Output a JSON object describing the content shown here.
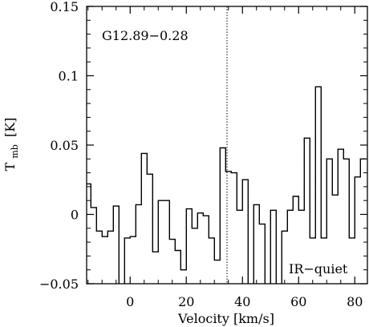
{
  "chart_data": {
    "type": "line",
    "style": "step",
    "ylabel": "T",
    "ylabel_sub": "mb",
    "ylabel_unit": "[K]",
    "xlabel": "Velocity [km/s]",
    "annotations": {
      "source": "G12.89−0.28",
      "category": "IR−quiet"
    },
    "xlim": [
      -15.5,
      84.5
    ],
    "ylim": [
      -0.05,
      0.15
    ],
    "xticks": [
      0,
      20,
      40,
      60,
      80
    ],
    "xtick_labels": [
      "0",
      "20",
      "40",
      "60",
      "80"
    ],
    "yticks": [
      -0.05,
      0,
      0.05,
      0.1,
      0.15
    ],
    "ytick_labels": [
      "−0.05",
      "0",
      "0.05",
      "0.1",
      "0.15"
    ],
    "vline_x": 34.5,
    "series": [
      {
        "x": [
          -15,
          -13,
          -11,
          -9,
          -7,
          -5,
          -3,
          -1,
          1,
          3,
          5,
          7,
          9,
          11,
          13,
          15,
          17,
          19,
          21,
          23,
          25,
          27,
          29,
          31,
          33,
          35,
          37,
          39,
          41,
          43,
          45,
          47,
          49,
          51,
          53,
          55,
          57,
          59,
          61,
          63,
          65,
          67,
          69,
          71,
          73,
          75,
          77,
          79,
          81,
          83
        ],
        "y": [
          0.022,
          0.005,
          -0.012,
          -0.016,
          -0.012,
          0.006,
          -0.052,
          -0.017,
          -0.016,
          0.007,
          0.044,
          0.029,
          -0.027,
          0.01,
          0.01,
          -0.018,
          -0.026,
          -0.04,
          0.004,
          -0.01,
          0.001,
          -0.001,
          -0.017,
          -0.033,
          0.048,
          0.031,
          0.03,
          0.003,
          0.025,
          -0.057,
          0.007,
          -0.007,
          -0.058,
          0.003,
          -0.052,
          -0.012,
          0.003,
          0.013,
          0.003,
          0.055,
          -0.017,
          0.092,
          -0.017,
          0.04,
          0.014,
          0.047,
          0.04,
          -0.017,
          0.027,
          0.04
        ]
      }
    ]
  }
}
